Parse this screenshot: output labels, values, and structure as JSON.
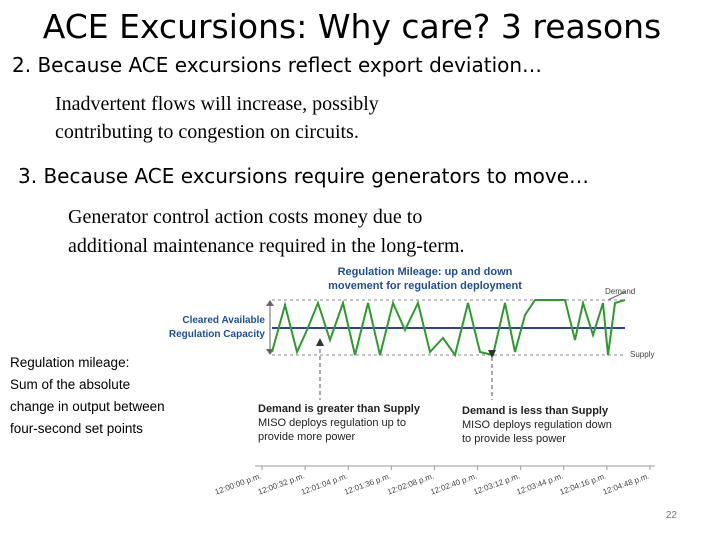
{
  "title": "ACE Excursions: Why care? 3 reasons",
  "sections": [
    {
      "heading": "2. Because ACE excursions reflect export deviation…",
      "body": [
        "Inadvertent flows will increase, possibly",
        "contributing to congestion on circuits."
      ]
    },
    {
      "heading": "3. Because ACE excursions require generators to move…",
      "body": [
        "Generator control action costs money due to",
        "additional maintenance required in the long-term."
      ]
    }
  ],
  "figure": {
    "title": [
      "Regulation Mileage: up and down",
      "movement for regulation deployment"
    ],
    "capacity_label": [
      "Cleared Available",
      "Regulation Capacity"
    ],
    "demand_label": "Demand",
    "supply_label": "Supply",
    "left_note": [
      "Demand is greater than Supply",
      "MISO deploys regulation up to",
      "provide more power"
    ],
    "right_note": [
      "Demand is less than Supply",
      "MISO deploys regulation down",
      "to provide less power"
    ],
    "times": [
      "12:00:00 p.m.",
      "12:00:32 p.m.",
      "12:01:04 p.m.",
      "12:01:36 p.m.",
      "12:02:08 p.m.",
      "12:02:40 p.m.",
      "12:03:12 p.m.",
      "12:03:44 p.m.",
      "12:04:16 p.m.",
      "12:04:48 p.m."
    ]
  },
  "sidebar": [
    "Regulation mileage:",
    "Sum of the absolute",
    "change in output between",
    "four-second set points"
  ],
  "page_number": "22"
}
